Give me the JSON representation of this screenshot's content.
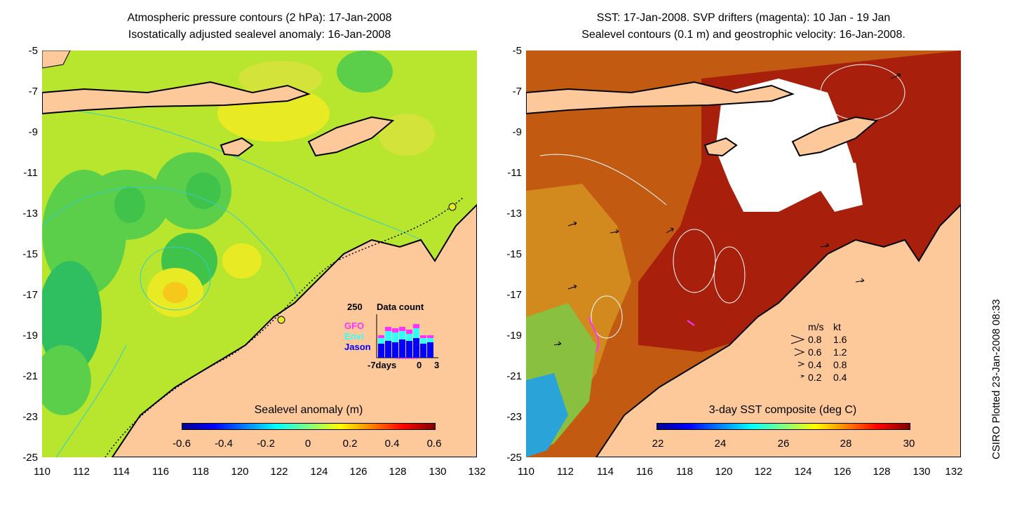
{
  "left": {
    "title_line1": "Atmospheric pressure contours (2 hPa): 17-Jan-2008",
    "title_line2": "Isostatically adjusted sealevel anomaly: 16-Jan-2008",
    "colorbar_title": "Sealevel anomaly (m)",
    "colorbar_ticks": [
      "-0.6",
      "-0.4",
      "-0.2",
      "0",
      "0.2",
      "0.4",
      "0.6"
    ],
    "inset": {
      "max_label": "250",
      "title": "Data count",
      "legend": [
        "GFO",
        "Envi",
        "Jason"
      ],
      "legend_colors": [
        "#ff33ff",
        "#33ffff",
        "#0000ff"
      ],
      "x_ticks": [
        "-7days",
        "0",
        "3"
      ]
    }
  },
  "right": {
    "title_line1": "SST: 17-Jan-2008. SVP drifters (magenta): 10 Jan - 19 Jan",
    "title_line2": "Sealevel contours (0.1 m) and geostrophic velocity: 16-Jan-2008.",
    "colorbar_title": "3-day SST composite (deg C)",
    "colorbar_ticks": [
      "22",
      "24",
      "26",
      "28",
      "30"
    ],
    "velocity_legend": {
      "header_ms": "m/s",
      "header_kt": "kt",
      "rows": [
        {
          "ms": "0.8",
          "kt": "1.6"
        },
        {
          "ms": "0.6",
          "kt": "1.2"
        },
        {
          "ms": "0.4",
          "kt": "0.8"
        },
        {
          "ms": "0.2",
          "kt": "0.4"
        }
      ]
    }
  },
  "axes": {
    "y_ticks": [
      "-5",
      "-7",
      "-9",
      "-11",
      "-13",
      "-15",
      "-17",
      "-19",
      "-21",
      "-23",
      "-25"
    ],
    "x_ticks": [
      "110",
      "112",
      "114",
      "116",
      "118",
      "120",
      "122",
      "124",
      "126",
      "128",
      "130",
      "132"
    ]
  },
  "credit": "CSIRO Plotted 23-Jan-2008 08:33",
  "colors": {
    "land": "#fdc99a",
    "sla_background": "#b8e62e",
    "sst_background": "#c25a12",
    "contour_cyan": "#33cccc"
  }
}
